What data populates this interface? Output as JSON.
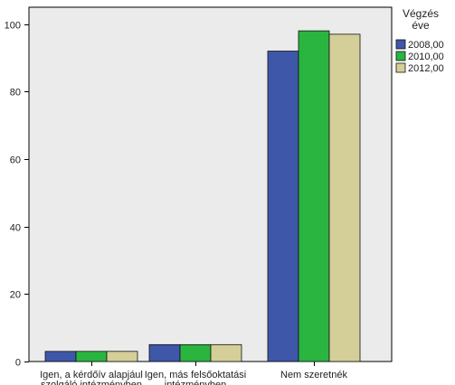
{
  "chart_data": {
    "type": "bar",
    "categories": [
      [
        "Igen, a kérdőív alapjául",
        "szolgáló intézményben"
      ],
      [
        "Igen, más felsőoktatási",
        "intézményben"
      ],
      [
        "Nem szeretnék"
      ]
    ],
    "series": [
      {
        "name": "2008,00",
        "color": "#3f57a8",
        "values": [
          3,
          5,
          92
        ]
      },
      {
        "name": "2010,00",
        "color": "#2ab541",
        "values": [
          3,
          5,
          98
        ]
      },
      {
        "name": "2012,00",
        "color": "#d4cf98",
        "values": [
          3,
          5,
          97
        ]
      }
    ],
    "ylim": [
      0,
      105
    ],
    "yticks": [
      0,
      20,
      40,
      60,
      80,
      100
    ],
    "legend": {
      "title_lines": [
        "Végzés",
        "éve"
      ],
      "position": "top-right"
    },
    "plot_background": "#ebebeb",
    "title": "",
    "xlabel": "",
    "ylabel": ""
  }
}
